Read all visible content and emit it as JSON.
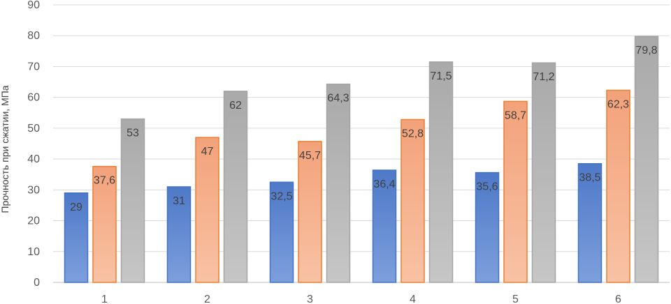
{
  "chart_data": {
    "type": "bar",
    "categories": [
      "1",
      "2",
      "3",
      "4",
      "5",
      "6"
    ],
    "series": [
      {
        "values": [
          29,
          31,
          32.5,
          36.4,
          35.6,
          38.5
        ],
        "labels": [
          "29",
          "31",
          "32,5",
          "36,4",
          "35,6",
          "38,5"
        ],
        "color": "#4472c4"
      },
      {
        "values": [
          37.6,
          47,
          45.7,
          52.8,
          58.7,
          62.3
        ],
        "labels": [
          "37,6",
          "47",
          "45,7",
          "52,8",
          "58,7",
          "62,3"
        ],
        "color": "#ed7d31"
      },
      {
        "values": [
          53,
          62,
          64.3,
          71.5,
          71.2,
          79.8
        ],
        "labels": [
          "53",
          "62",
          "64,3",
          "71,5",
          "71,2",
          "79,8"
        ],
        "color": "#a5a5a5"
      }
    ],
    "ylabel": "Прочность при сжатии, МПа",
    "xlabel": "",
    "ylim": [
      0,
      90
    ],
    "yticks": [
      0,
      10,
      20,
      30,
      40,
      50,
      60,
      70,
      80,
      90
    ],
    "grid": true,
    "legend": "none"
  }
}
